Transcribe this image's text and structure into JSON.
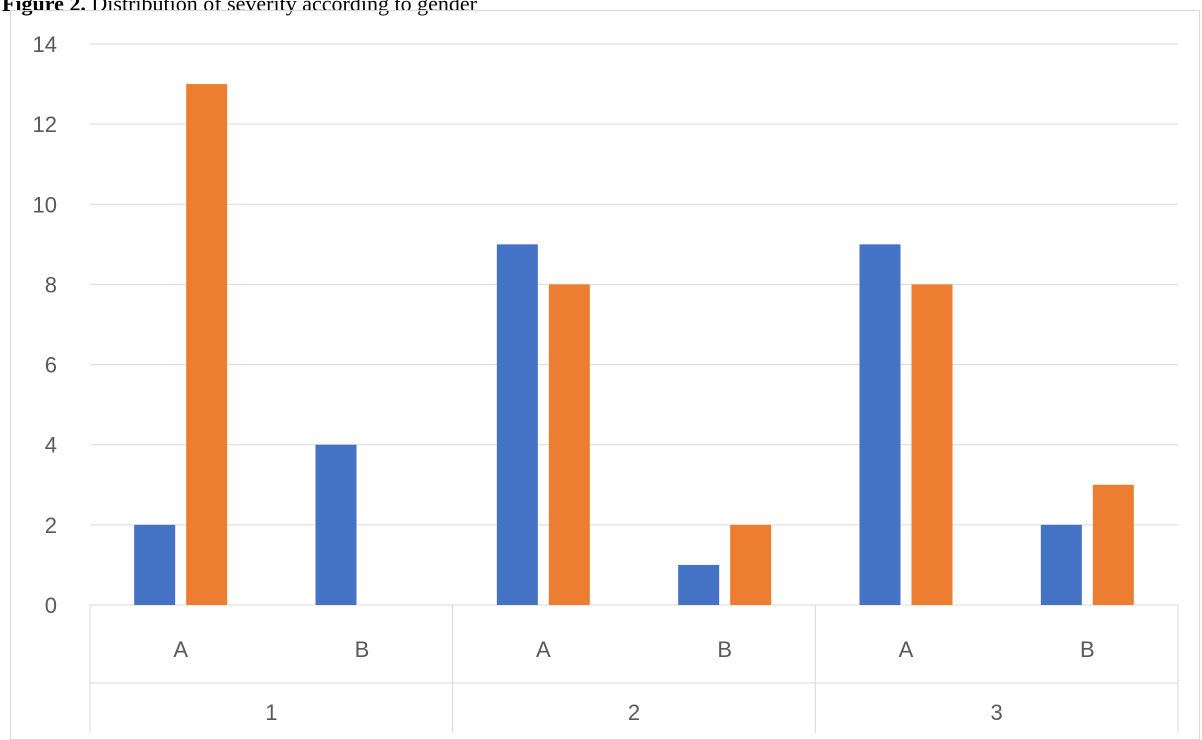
{
  "figure": {
    "label": "Figure 2.",
    "caption": " Distribution of severity according to gender"
  },
  "chart_data": {
    "type": "bar",
    "groups": [
      {
        "label": "1",
        "categories": [
          "A",
          "B"
        ]
      },
      {
        "label": "2",
        "categories": [
          "A",
          "B"
        ]
      },
      {
        "label": "3",
        "categories": [
          "A",
          "B"
        ]
      }
    ],
    "categories": [
      "1-A",
      "1-B",
      "2-A",
      "2-B",
      "3-A",
      "3-B"
    ],
    "series": [
      {
        "values": [
          2,
          4,
          9,
          1,
          9,
          2
        ],
        "color": "#4472c4"
      },
      {
        "values": [
          13,
          0,
          8,
          2,
          8,
          3
        ],
        "color": "#ed7d31"
      }
    ],
    "ylim": [
      0,
      14
    ],
    "yticks": [
      0,
      2,
      4,
      6,
      8,
      10,
      12,
      14
    ],
    "grid": true,
    "legend": "none",
    "title": "",
    "xlabel": "",
    "ylabel": ""
  }
}
